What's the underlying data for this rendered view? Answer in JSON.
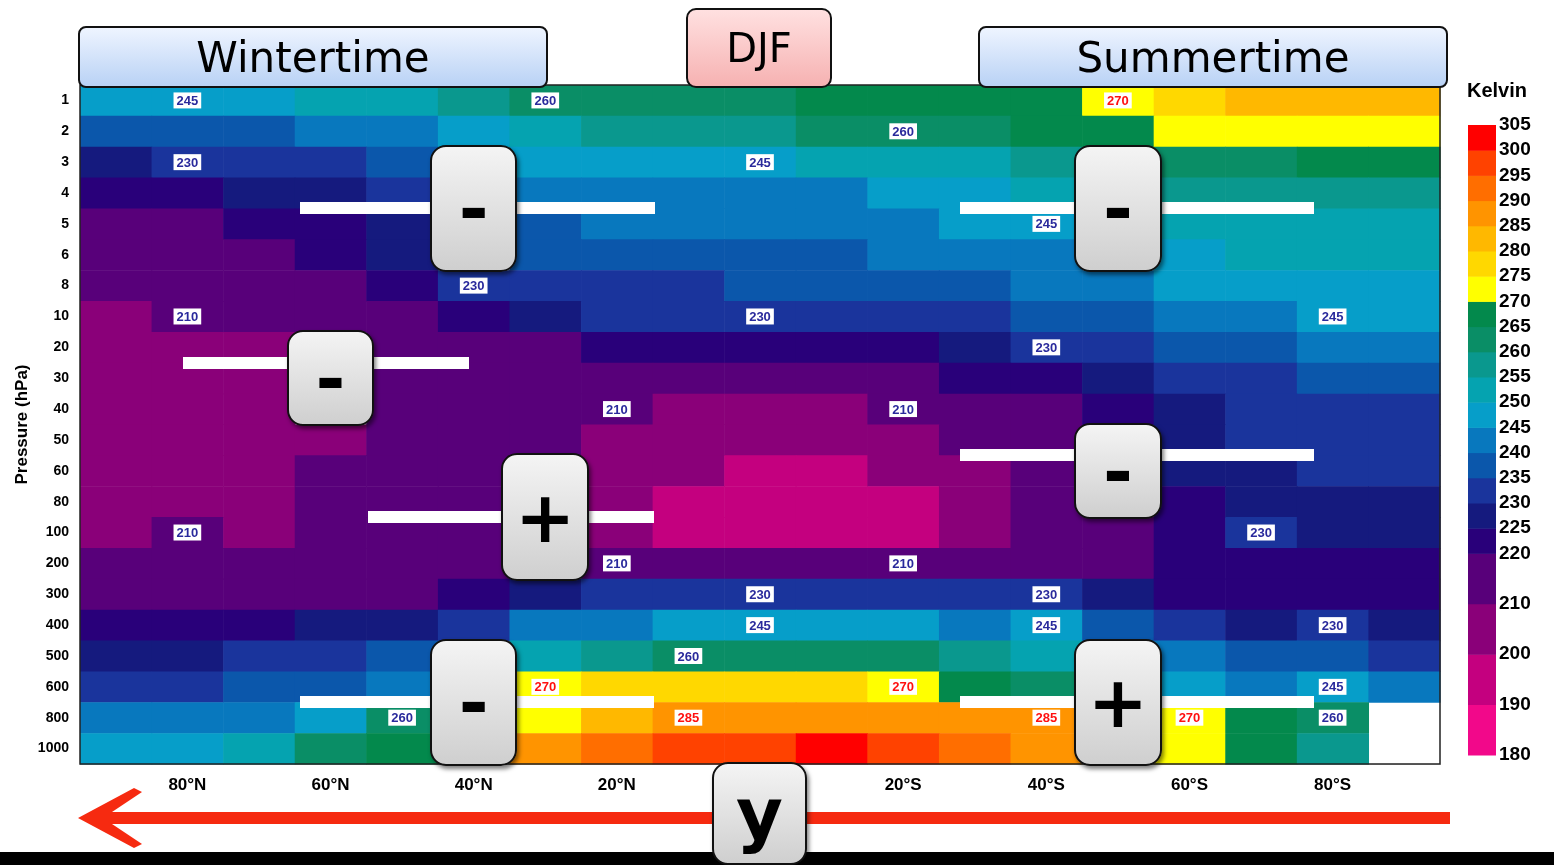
{
  "chart_data": {
    "type": "heatmap",
    "ylabel": "Pressure (hPa)",
    "clabel": "Kelvin",
    "categories": [
      null,
      "80°N",
      null,
      "60°N",
      null,
      "40°N",
      null,
      "20°N",
      null,
      null,
      null,
      "20°S",
      null,
      "40°S",
      null,
      "60°S",
      null,
      "80°S",
      null
    ],
    "y_categories": [
      "1",
      "2",
      "3",
      "4",
      "5",
      "6",
      "8",
      "10",
      "20",
      "30",
      "40",
      "50",
      "60",
      "80",
      "100",
      "200",
      "300",
      "400",
      "500",
      "600",
      "800",
      "1000"
    ],
    "cells": [
      [
        247,
        245,
        247,
        250,
        253,
        258,
        260,
        263,
        263,
        264,
        265,
        265,
        267,
        269,
        270,
        276,
        280,
        282,
        283
      ],
      [
        237,
        237,
        238,
        240,
        243,
        248,
        253,
        256,
        258,
        259,
        260,
        260,
        263,
        265,
        267,
        271,
        272,
        273,
        273
      ],
      [
        229,
        230,
        231,
        233,
        237,
        null,
        246,
        247,
        248,
        245,
        250,
        252,
        254,
        257,
        null,
        262,
        264,
        266,
        266
      ],
      [
        223,
        223,
        225,
        228,
        232,
        null,
        241,
        243,
        243,
        243,
        244,
        246,
        248,
        251,
        null,
        256,
        257,
        258,
        258
      ],
      [
        218,
        219,
        221,
        224,
        228,
        null,
        238,
        240,
        241,
        241,
        242,
        243,
        245,
        245,
        null,
        252,
        253,
        253,
        253
      ],
      [
        215,
        216,
        218,
        221,
        225,
        null,
        235,
        237,
        238,
        238,
        239,
        240,
        242,
        244,
        null,
        249,
        250,
        251,
        251
      ],
      [
        212,
        212,
        214,
        217,
        221,
        230,
        231,
        233,
        234,
        235,
        236,
        237,
        238,
        240,
        242,
        245,
        247,
        248,
        248
      ],
      [
        208,
        210,
        212,
        215,
        219,
        223,
        228,
        230,
        231,
        230,
        232,
        233,
        234,
        237,
        239,
        242,
        244,
        245,
        245
      ],
      [
        205,
        205,
        207,
        null,
        213,
        216,
        219,
        221,
        222,
        222,
        223,
        224,
        226,
        230,
        232,
        235,
        238,
        240,
        241
      ],
      [
        203,
        203,
        205,
        null,
        212,
        214,
        216,
        217,
        218,
        218,
        218,
        219,
        221,
        224,
        228,
        232,
        234,
        236,
        236
      ],
      [
        203,
        203,
        205,
        null,
        212,
        213,
        214,
        210,
        208,
        207,
        208,
        210,
        214,
        218,
        223,
        228,
        230,
        231,
        231
      ],
      [
        203,
        204,
        205,
        209,
        212,
        213,
        212,
        207,
        204,
        203,
        204,
        206,
        210,
        215,
        null,
        227,
        230,
        231,
        231
      ],
      [
        204,
        204,
        206,
        210,
        212,
        213,
        null,
        205,
        200,
        198,
        199,
        202,
        207,
        214,
        null,
        226,
        229,
        230,
        230
      ],
      [
        205,
        205,
        207,
        211,
        213,
        213,
        null,
        202,
        196,
        195,
        195,
        196,
        205,
        213,
        null,
        224,
        227,
        228,
        228
      ],
      [
        208,
        210,
        209,
        212,
        213,
        213,
        null,
        203,
        197,
        196,
        196,
        197,
        204,
        212,
        218,
        223,
        230,
        228,
        228
      ],
      [
        212,
        212,
        213,
        214,
        214,
        214,
        null,
        210,
        210,
        210,
        210,
        210,
        214,
        217,
        219,
        221,
        222,
        223,
        223
      ],
      [
        217,
        217,
        217,
        217,
        219,
        223,
        228,
        232,
        231,
        230,
        231,
        232,
        231,
        230,
        225,
        222,
        222,
        222,
        222
      ],
      [
        223,
        223,
        224,
        226,
        229,
        234,
        240,
        244,
        246,
        245,
        246,
        246,
        244,
        245,
        237,
        231,
        229,
        230,
        228
      ],
      [
        228,
        228,
        230,
        232,
        236,
        null,
        250,
        257,
        260,
        261,
        261,
        262,
        256,
        251,
        null,
        240,
        237,
        235,
        234
      ],
      [
        234,
        234,
        236,
        239,
        243,
        null,
        270,
        275,
        277,
        277,
        277,
        270,
        266,
        261,
        null,
        249,
        244,
        245,
        240
      ],
      [
        242,
        242,
        244,
        249,
        260,
        null,
        273,
        282,
        285,
        287,
        288,
        288,
        287,
        285,
        null,
        270,
        265,
        260,
        null
      ],
      [
        245,
        247,
        252,
        260,
        266,
        null,
        285,
        293,
        298,
        299,
        300,
        297,
        293,
        288,
        null,
        272,
        265,
        258,
        null
      ]
    ],
    "cell_labels": [
      [
        null,
        "245",
        null,
        null,
        null,
        null,
        "260",
        null,
        null,
        null,
        null,
        null,
        null,
        null,
        "270",
        null,
        null,
        null,
        null
      ],
      [
        null,
        null,
        null,
        null,
        null,
        null,
        null,
        null,
        null,
        null,
        null,
        "260",
        null,
        null,
        null,
        null,
        null,
        null,
        null
      ],
      [
        null,
        "230",
        null,
        null,
        null,
        null,
        null,
        null,
        null,
        "245",
        null,
        null,
        null,
        null,
        null,
        null,
        null,
        null,
        null
      ],
      [
        null,
        null,
        null,
        null,
        null,
        null,
        null,
        null,
        null,
        null,
        null,
        null,
        null,
        null,
        null,
        null,
        null,
        null,
        null
      ],
      [
        null,
        null,
        null,
        null,
        null,
        null,
        null,
        null,
        null,
        null,
        null,
        null,
        null,
        "245",
        null,
        null,
        null,
        null,
        null
      ],
      [
        null,
        null,
        null,
        null,
        null,
        null,
        null,
        null,
        null,
        null,
        null,
        null,
        null,
        null,
        null,
        null,
        null,
        null,
        null
      ],
      [
        null,
        null,
        null,
        null,
        null,
        "230",
        null,
        null,
        null,
        null,
        null,
        null,
        null,
        null,
        null,
        null,
        null,
        null,
        null
      ],
      [
        null,
        "210",
        null,
        null,
        null,
        null,
        null,
        null,
        null,
        "230",
        null,
        null,
        null,
        null,
        null,
        null,
        null,
        "245",
        null
      ],
      [
        null,
        null,
        null,
        null,
        null,
        null,
        null,
        null,
        null,
        null,
        null,
        null,
        null,
        "230",
        null,
        null,
        null,
        null,
        null
      ],
      [
        null,
        null,
        null,
        null,
        null,
        null,
        null,
        null,
        null,
        null,
        null,
        null,
        null,
        null,
        null,
        null,
        null,
        null,
        null
      ],
      [
        null,
        null,
        null,
        null,
        null,
        null,
        null,
        "210",
        null,
        null,
        null,
        "210",
        null,
        null,
        null,
        null,
        null,
        null,
        null
      ],
      [
        null,
        null,
        null,
        null,
        null,
        null,
        null,
        null,
        null,
        null,
        null,
        null,
        null,
        null,
        null,
        null,
        null,
        null,
        null
      ],
      [
        null,
        null,
        null,
        null,
        null,
        null,
        null,
        null,
        null,
        null,
        null,
        null,
        null,
        null,
        null,
        null,
        null,
        null,
        null
      ],
      [
        null,
        null,
        null,
        null,
        null,
        null,
        null,
        null,
        null,
        null,
        null,
        null,
        null,
        null,
        null,
        null,
        null,
        null,
        null
      ],
      [
        null,
        "210",
        null,
        null,
        null,
        null,
        null,
        null,
        null,
        null,
        null,
        null,
        null,
        null,
        null,
        null,
        "230",
        null,
        null
      ],
      [
        null,
        null,
        null,
        null,
        null,
        null,
        null,
        "210",
        null,
        null,
        null,
        "210",
        null,
        null,
        null,
        null,
        null,
        null,
        null
      ],
      [
        null,
        null,
        null,
        null,
        null,
        null,
        null,
        null,
        null,
        "230",
        null,
        null,
        null,
        "230",
        null,
        null,
        null,
        null,
        null
      ],
      [
        null,
        null,
        null,
        null,
        null,
        null,
        null,
        null,
        null,
        "245",
        null,
        null,
        null,
        "245",
        null,
        null,
        null,
        "230",
        null
      ],
      [
        null,
        null,
        null,
        null,
        null,
        null,
        null,
        null,
        "260",
        null,
        null,
        null,
        null,
        null,
        null,
        null,
        null,
        null,
        null
      ],
      [
        null,
        null,
        null,
        null,
        null,
        null,
        "270",
        null,
        null,
        null,
        null,
        "270",
        null,
        null,
        null,
        null,
        null,
        "245",
        null
      ],
      [
        null,
        null,
        null,
        null,
        "260",
        null,
        null,
        null,
        "285",
        null,
        null,
        null,
        null,
        "285",
        null,
        "270",
        null,
        "260",
        null
      ],
      [
        null,
        null,
        null,
        null,
        null,
        null,
        null,
        null,
        null,
        null,
        null,
        null,
        null,
        null,
        null,
        null,
        null,
        null,
        null
      ]
    ],
    "clim": [
      180,
      305
    ],
    "cticks": [
      180,
      190,
      200,
      210,
      220,
      225,
      230,
      235,
      240,
      245,
      250,
      255,
      260,
      265,
      270,
      275,
      280,
      285,
      290,
      295,
      300,
      305
    ],
    "annotations": [
      "Wintertime",
      "DJF",
      "Summertime",
      "-",
      "-",
      "-",
      "-",
      "+",
      "-",
      "+",
      "y"
    ],
    "grid": false,
    "legend": false
  }
}
